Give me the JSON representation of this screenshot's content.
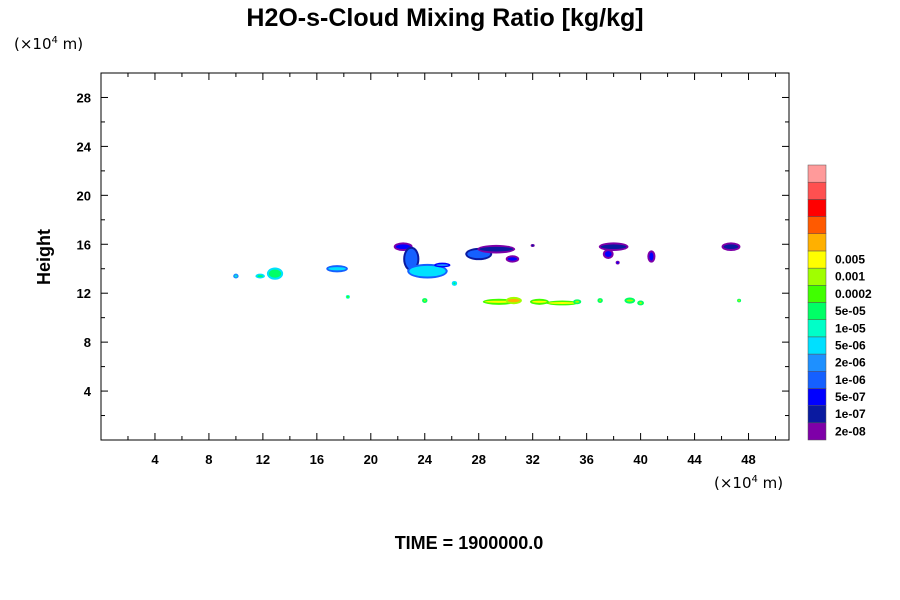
{
  "chart_data": {
    "type": "heatmap",
    "title": "H2O-s-Cloud Mixing Ratio [kg/kg]",
    "ylabel": "Height",
    "x_unit": "(×10",
    "y_unit": "(×10",
    "unit_exponent": "4",
    "unit_suffix": " m)",
    "xlim": [
      0,
      51
    ],
    "ylim": [
      0,
      30
    ],
    "x_ticks": [
      4,
      8,
      12,
      16,
      20,
      24,
      28,
      32,
      36,
      40,
      44,
      48
    ],
    "y_ticks": [
      4,
      8,
      12,
      16,
      20,
      24,
      28
    ],
    "time_label": "TIME = 1900000.0",
    "colorbar": {
      "colors": [
        "#7e00a8",
        "#0a1aa0",
        "#0000ff",
        "#1560ff",
        "#1e90ff",
        "#00e0ff",
        "#00ffc8",
        "#00ff66",
        "#40ff00",
        "#a0ff00",
        "#ffff00",
        "#ffb000",
        "#ff5a00",
        "#ff0000",
        "#ff5050",
        "#ff9a9a"
      ],
      "labels": [
        "2e-08",
        "1e-07",
        "5e-07",
        "1e-06",
        "2e-06",
        "5e-06",
        "1e-05",
        "5e-05",
        "0.0002",
        "0.001",
        "0.005"
      ]
    },
    "cloud_features": [
      {
        "x": 10.0,
        "y": 13.4,
        "rx": 0.2,
        "ry": 0.2,
        "level": 6
      },
      {
        "x": 11.8,
        "y": 13.4,
        "rx": 0.35,
        "ry": 0.2,
        "level": 7
      },
      {
        "x": 12.9,
        "y": 13.6,
        "rx": 0.6,
        "ry": 0.5,
        "level": 7
      },
      {
        "x": 17.5,
        "y": 14.0,
        "rx": 0.8,
        "ry": 0.3,
        "level": 5
      },
      {
        "x": 18.3,
        "y": 11.7,
        "rx": 0.15,
        "ry": 0.15,
        "level": 8
      },
      {
        "x": 22.4,
        "y": 15.8,
        "rx": 0.7,
        "ry": 0.35,
        "level": 2
      },
      {
        "x": 23.0,
        "y": 14.8,
        "rx": 0.6,
        "ry": 1.0,
        "level": 3
      },
      {
        "x": 24.2,
        "y": 13.8,
        "rx": 1.5,
        "ry": 0.6,
        "level": 5
      },
      {
        "x": 25.3,
        "y": 14.3,
        "rx": 0.6,
        "ry": 0.2,
        "level": 4
      },
      {
        "x": 26.2,
        "y": 12.8,
        "rx": 0.2,
        "ry": 0.2,
        "level": 7
      },
      {
        "x": 24.0,
        "y": 11.4,
        "rx": 0.2,
        "ry": 0.2,
        "level": 9
      },
      {
        "x": 28.0,
        "y": 15.2,
        "rx": 1.0,
        "ry": 0.5,
        "level": 3
      },
      {
        "x": 29.3,
        "y": 15.6,
        "rx": 1.4,
        "ry": 0.35,
        "level": 1
      },
      {
        "x": 30.5,
        "y": 14.8,
        "rx": 0.5,
        "ry": 0.3,
        "level": 2
      },
      {
        "x": 29.5,
        "y": 11.3,
        "rx": 1.2,
        "ry": 0.25,
        "level": 10
      },
      {
        "x": 30.6,
        "y": 11.4,
        "rx": 0.6,
        "ry": 0.3,
        "level": 11
      },
      {
        "x": 32.5,
        "y": 11.3,
        "rx": 0.7,
        "ry": 0.25,
        "level": 10
      },
      {
        "x": 34.2,
        "y": 11.2,
        "rx": 1.2,
        "ry": 0.2,
        "level": 10
      },
      {
        "x": 35.3,
        "y": 11.3,
        "rx": 0.3,
        "ry": 0.2,
        "level": 9
      },
      {
        "x": 37.0,
        "y": 11.4,
        "rx": 0.2,
        "ry": 0.2,
        "level": 9
      },
      {
        "x": 39.2,
        "y": 11.4,
        "rx": 0.4,
        "ry": 0.25,
        "level": 9
      },
      {
        "x": 40.0,
        "y": 11.2,
        "rx": 0.25,
        "ry": 0.2,
        "level": 9
      },
      {
        "x": 47.3,
        "y": 11.4,
        "rx": 0.15,
        "ry": 0.15,
        "level": 9
      },
      {
        "x": 32.0,
        "y": 15.9,
        "rx": 0.15,
        "ry": 0.12,
        "level": 1
      },
      {
        "x": 38.0,
        "y": 15.8,
        "rx": 1.1,
        "ry": 0.35,
        "level": 1
      },
      {
        "x": 37.6,
        "y": 15.2,
        "rx": 0.4,
        "ry": 0.4,
        "level": 2
      },
      {
        "x": 38.3,
        "y": 14.5,
        "rx": 0.15,
        "ry": 0.15,
        "level": 2
      },
      {
        "x": 40.8,
        "y": 15.0,
        "rx": 0.3,
        "ry": 0.5,
        "level": 2
      },
      {
        "x": 46.7,
        "y": 15.8,
        "rx": 0.7,
        "ry": 0.35,
        "level": 1
      }
    ]
  }
}
